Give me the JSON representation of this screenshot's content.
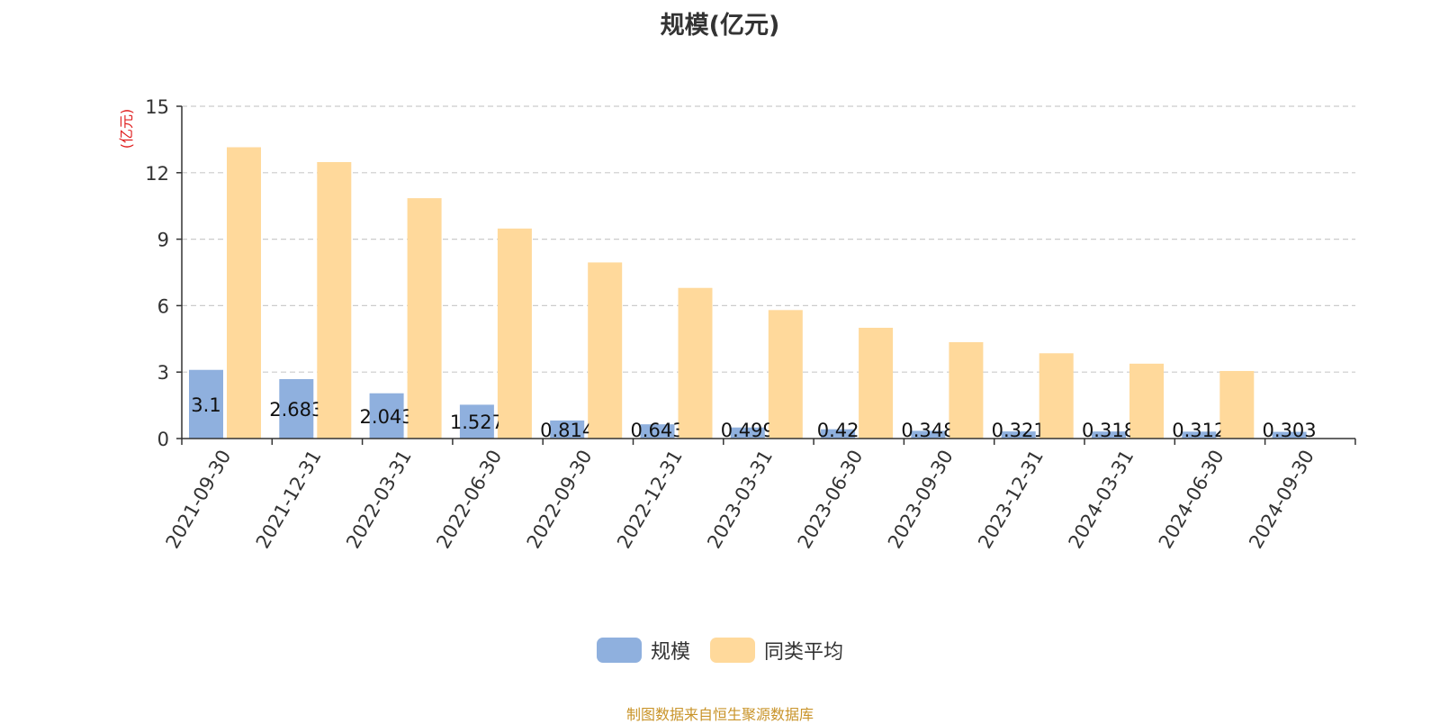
{
  "chart_data": {
    "type": "bar",
    "title": "规模(亿元)",
    "ylabel": "(亿元)",
    "xlabel": "",
    "ylim": [
      0,
      15
    ],
    "yticks": [
      0,
      3,
      6,
      9,
      12,
      15
    ],
    "grid": true,
    "legend_position": "bottom",
    "categories": [
      "2021-09-30",
      "2021-12-31",
      "2022-03-31",
      "2022-06-30",
      "2022-09-30",
      "2022-12-31",
      "2023-03-31",
      "2023-06-30",
      "2023-09-30",
      "2023-12-31",
      "2024-03-31",
      "2024-06-30",
      "2024-09-30"
    ],
    "series": [
      {
        "name": "规模",
        "color": "#8fb0de",
        "values": [
          3.1,
          2.683,
          2.043,
          1.527,
          0.814,
          0.643,
          0.499,
          0.42,
          0.348,
          0.321,
          0.318,
          0.312,
          0.303
        ],
        "labels": [
          "3.1",
          "2.683",
          "2.043",
          "1.527",
          "0.814",
          "0.643",
          "0.499",
          "0.42",
          "0.348",
          "0.321",
          "0.318",
          "0.312",
          "0.303"
        ]
      },
      {
        "name": "同类平均",
        "color": "#ffd99b",
        "values": [
          13.15,
          12.48,
          10.85,
          9.48,
          7.95,
          6.8,
          5.8,
          5.0,
          4.35,
          3.85,
          3.38,
          3.05,
          null
        ]
      }
    ]
  },
  "footer_note": "制图数据来自恒生聚源数据库"
}
